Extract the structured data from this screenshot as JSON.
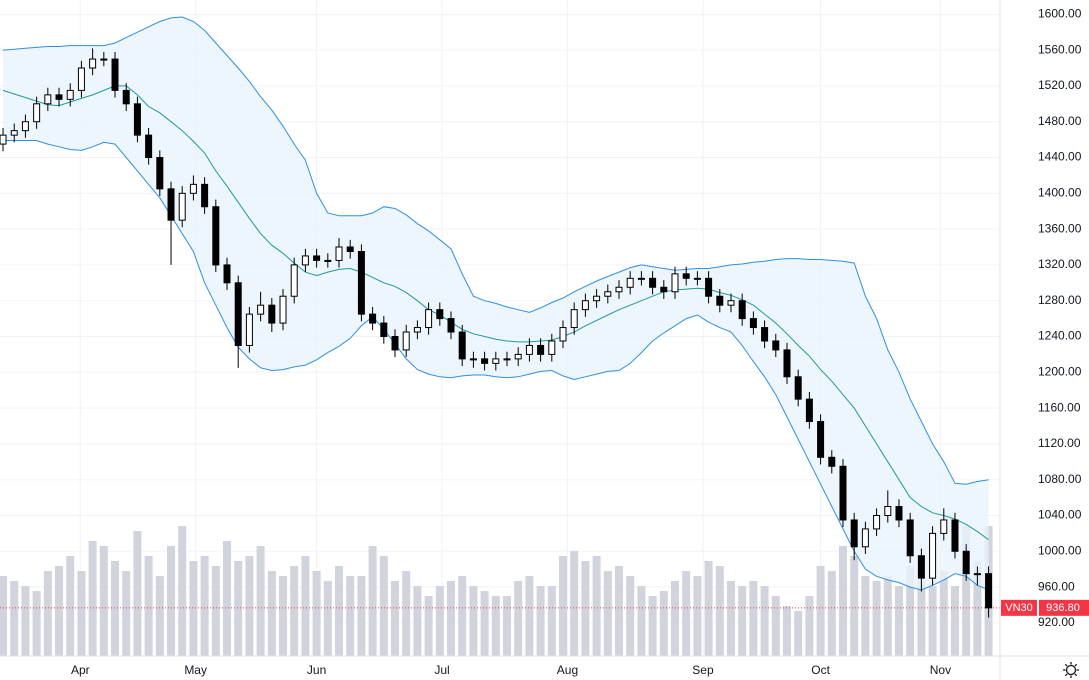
{
  "chart_data": {
    "type": "candlestick",
    "symbol": "VN30",
    "xlim": [
      -0.27,
      89.02
    ],
    "xticks": [
      {
        "value": 6.9,
        "label": "Apr"
      },
      {
        "value": 17.2,
        "label": "May"
      },
      {
        "value": 28,
        "label": "Jun"
      },
      {
        "value": 39.2,
        "label": "Jul"
      },
      {
        "value": 50.4,
        "label": "Aug"
      },
      {
        "value": 62.5,
        "label": "Sep"
      },
      {
        "value": 73,
        "label": "Oct"
      },
      {
        "value": 83.7,
        "label": "Nov"
      }
    ],
    "ylim": [
      883,
      1616
    ],
    "yticks": [
      {
        "value": 920,
        "label": "920.00"
      },
      {
        "value": 960,
        "label": "960.00"
      },
      {
        "value": 1000,
        "label": "1000.00"
      },
      {
        "value": 1040,
        "label": "1040.00"
      },
      {
        "value": 1080,
        "label": "1080.00"
      },
      {
        "value": 1120,
        "label": "1120.00"
      },
      {
        "value": 1160,
        "label": "1160.00"
      },
      {
        "value": 1200,
        "label": "1200.00"
      },
      {
        "value": 1240,
        "label": "1240.00"
      },
      {
        "value": 1280,
        "label": "1280.00"
      },
      {
        "value": 1320,
        "label": "1320.00"
      },
      {
        "value": 1360,
        "label": "1360.00"
      },
      {
        "value": 1400,
        "label": "1400.00"
      },
      {
        "value": 1440,
        "label": "1440.00"
      },
      {
        "value": 1480,
        "label": "1480.00"
      },
      {
        "value": 1520,
        "label": "1520.00"
      },
      {
        "value": 1560,
        "label": "1560.00"
      },
      {
        "value": 1600,
        "label": "1600.00"
      }
    ],
    "grid": true,
    "up_color": "#ffffff",
    "down_color": "#000000",
    "open": [
      1455,
      1465,
      1470,
      1480,
      1500,
      1510,
      1505,
      1515,
      1540,
      1550,
      1550,
      1515,
      1500,
      1465,
      1440,
      1405,
      1370,
      1400,
      1410,
      1385,
      1320,
      1300,
      1230,
      1265,
      1275,
      1255,
      1285,
      1320,
      1330,
      1325,
      1325,
      1340,
      1335,
      1265,
      1255,
      1240,
      1225,
      1245,
      1250,
      1270,
      1260,
      1245,
      1215,
      1215,
      1210,
      1215,
      1215,
      1220,
      1230,
      1220,
      1235,
      1250,
      1270,
      1280,
      1285,
      1290,
      1295,
      1305,
      1305,
      1295,
      1290,
      1310,
      1305,
      1305,
      1285,
      1275,
      1280,
      1260,
      1250,
      1235,
      1225,
      1195,
      1170,
      1145,
      1105,
      1095,
      1035,
      1005,
      1025,
      1040,
      1050,
      1035,
      995,
      970,
      1020,
      1035,
      1000,
      975,
      975
    ],
    "high": [
      1473,
      1478,
      1488,
      1508,
      1518,
      1518,
      1523,
      1548,
      1562,
      1558,
      1558,
      1523,
      1508,
      1473,
      1448,
      1413,
      1408,
      1420,
      1418,
      1393,
      1328,
      1308,
      1273,
      1290,
      1283,
      1293,
      1328,
      1338,
      1338,
      1333,
      1350,
      1348,
      1343,
      1273,
      1263,
      1248,
      1253,
      1258,
      1278,
      1278,
      1268,
      1253,
      1223,
      1223,
      1223,
      1223,
      1228,
      1238,
      1238,
      1243,
      1258,
      1278,
      1288,
      1293,
      1298,
      1303,
      1313,
      1313,
      1313,
      1303,
      1318,
      1318,
      1313,
      1313,
      1293,
      1288,
      1288,
      1268,
      1258,
      1243,
      1233,
      1203,
      1178,
      1153,
      1113,
      1103,
      1043,
      1033,
      1048,
      1068,
      1058,
      1043,
      1003,
      1028,
      1048,
      1043,
      1008,
      983,
      983
    ],
    "low": [
      1447,
      1457,
      1462,
      1472,
      1492,
      1497,
      1497,
      1507,
      1532,
      1542,
      1507,
      1492,
      1457,
      1432,
      1397,
      1320,
      1362,
      1392,
      1377,
      1312,
      1292,
      1205,
      1222,
      1257,
      1245,
      1247,
      1277,
      1312,
      1317,
      1317,
      1317,
      1327,
      1257,
      1247,
      1232,
      1217,
      1217,
      1237,
      1242,
      1252,
      1237,
      1207,
      1205,
      1202,
      1202,
      1207,
      1207,
      1212,
      1212,
      1212,
      1227,
      1242,
      1262,
      1272,
      1277,
      1282,
      1287,
      1297,
      1287,
      1282,
      1282,
      1297,
      1297,
      1277,
      1267,
      1267,
      1252,
      1242,
      1227,
      1217,
      1187,
      1162,
      1137,
      1097,
      1087,
      1027,
      990,
      997,
      1017,
      1032,
      1027,
      987,
      955,
      962,
      1012,
      992,
      967,
      962,
      926
    ],
    "close": [
      1465,
      1470,
      1480,
      1500,
      1510,
      1505,
      1515,
      1540,
      1550,
      1550,
      1515,
      1500,
      1465,
      1440,
      1405,
      1370,
      1400,
      1410,
      1385,
      1320,
      1300,
      1230,
      1265,
      1275,
      1255,
      1285,
      1320,
      1330,
      1325,
      1325,
      1340,
      1335,
      1265,
      1255,
      1240,
      1225,
      1245,
      1250,
      1270,
      1260,
      1245,
      1215,
      1215,
      1210,
      1215,
      1215,
      1220,
      1230,
      1220,
      1235,
      1250,
      1270,
      1280,
      1285,
      1290,
      1295,
      1305,
      1305,
      1295,
      1290,
      1310,
      1305,
      1305,
      1285,
      1275,
      1280,
      1260,
      1250,
      1235,
      1225,
      1195,
      1170,
      1145,
      1105,
      1095,
      1035,
      1005,
      1025,
      1040,
      1050,
      1035,
      995,
      970,
      1020,
      1035,
      1000,
      975,
      975,
      936.8
    ],
    "bollinger": {
      "band_color": "#2f8fe0",
      "middle_color": "#1f9a96",
      "fill_color": "#e8f3fc",
      "upper": [
        1560,
        1561,
        1562,
        1563,
        1564,
        1564,
        1565,
        1565,
        1565,
        1565,
        1568,
        1574,
        1580,
        1586,
        1592,
        1596,
        1597,
        1592,
        1582,
        1568,
        1554,
        1540,
        1525,
        1508,
        1493,
        1475,
        1455,
        1437,
        1400,
        1378,
        1375,
        1375,
        1375,
        1378,
        1385,
        1383,
        1376,
        1366,
        1358,
        1348,
        1338,
        1310,
        1285,
        1280,
        1277,
        1273,
        1270,
        1267,
        1272,
        1278,
        1283,
        1290,
        1296,
        1302,
        1307,
        1312,
        1317,
        1320,
        1318,
        1316,
        1314,
        1315,
        1316,
        1316,
        1318,
        1320,
        1321,
        1323,
        1324,
        1326,
        1327,
        1327,
        1326,
        1326,
        1325,
        1324,
        1322,
        1285,
        1260,
        1225,
        1200,
        1170,
        1145,
        1120,
        1100,
        1076,
        1075,
        1078,
        1080
      ],
      "middle": [
        1515,
        1511,
        1507,
        1503,
        1499,
        1498,
        1502,
        1506,
        1510,
        1515,
        1520,
        1520,
        1510,
        1497,
        1490,
        1480,
        1470,
        1458,
        1445,
        1425,
        1408,
        1390,
        1372,
        1355,
        1342,
        1333,
        1322,
        1312,
        1308,
        1312,
        1315,
        1316,
        1312,
        1306,
        1300,
        1296,
        1289,
        1280,
        1270,
        1264,
        1256,
        1248,
        1243,
        1240,
        1237,
        1235,
        1234,
        1234,
        1235,
        1236,
        1240,
        1245,
        1252,
        1258,
        1264,
        1270,
        1275,
        1280,
        1285,
        1290,
        1292,
        1293,
        1294,
        1293,
        1289,
        1286,
        1281,
        1275,
        1265,
        1255,
        1243,
        1230,
        1218,
        1203,
        1190,
        1175,
        1160,
        1140,
        1120,
        1100,
        1080,
        1060,
        1050,
        1043,
        1040,
        1036,
        1030,
        1022,
        1013
      ],
      "lower": [
        1459,
        1459,
        1459,
        1459,
        1455,
        1452,
        1449,
        1448,
        1452,
        1457,
        1455,
        1440,
        1425,
        1410,
        1395,
        1375,
        1355,
        1335,
        1300,
        1275,
        1250,
        1228,
        1215,
        1205,
        1202,
        1203,
        1206,
        1208,
        1214,
        1222,
        1229,
        1238,
        1252,
        1262,
        1248,
        1232,
        1215,
        1203,
        1198,
        1195,
        1194,
        1196,
        1197,
        1197,
        1195,
        1194,
        1195,
        1198,
        1201,
        1202,
        1196,
        1192,
        1195,
        1198,
        1201,
        1202,
        1210,
        1222,
        1235,
        1244,
        1252,
        1260,
        1264,
        1256,
        1250,
        1245,
        1230,
        1212,
        1195,
        1175,
        1150,
        1125,
        1100,
        1075,
        1050,
        1025,
        1000,
        980,
        972,
        968,
        965,
        960,
        957,
        962,
        968,
        975,
        972,
        962,
        957
      ]
    },
    "volume": {
      "color": "#d1d4dc",
      "y2lim": [
        0,
        656
      ],
      "values": [
        80,
        75,
        70,
        65,
        85,
        90,
        100,
        85,
        115,
        110,
        95,
        85,
        125,
        100,
        80,
        110,
        130,
        95,
        100,
        90,
        115,
        95,
        100,
        110,
        85,
        80,
        90,
        100,
        85,
        75,
        90,
        80,
        80,
        110,
        100,
        75,
        85,
        70,
        60,
        70,
        75,
        80,
        70,
        65,
        60,
        60,
        75,
        80,
        70,
        70,
        100,
        105,
        95,
        100,
        85,
        90,
        80,
        70,
        60,
        65,
        75,
        85,
        80,
        95,
        90,
        75,
        70,
        75,
        70,
        60,
        50,
        45,
        60,
        90,
        85,
        110,
        100,
        80,
        75,
        80,
        70,
        90,
        75,
        70,
        85,
        70,
        130,
        95,
        130
      ]
    },
    "last_price": {
      "value": 936.8,
      "label": "936.80",
      "color": "#f23645"
    }
  }
}
